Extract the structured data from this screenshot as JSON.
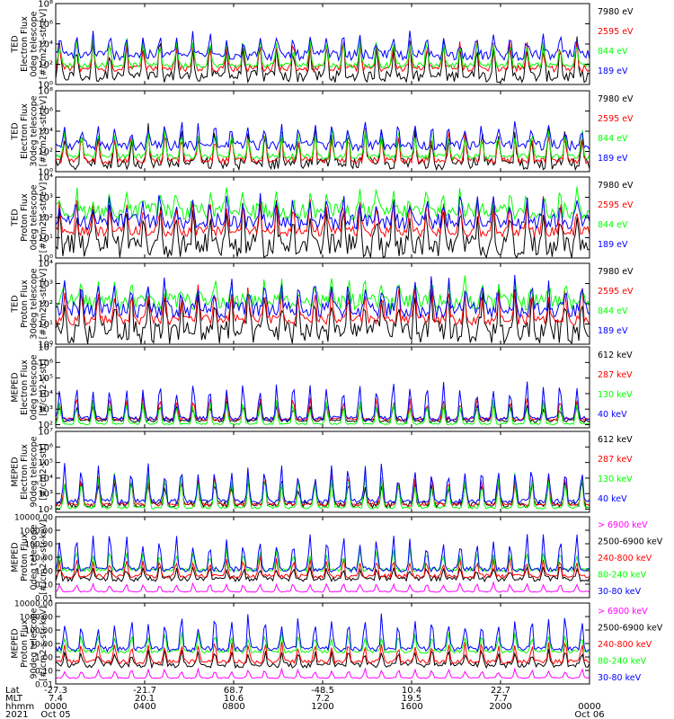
{
  "chart_data": [
    {
      "type": "line",
      "ylabel": [
        "TED",
        "Electron Flux",
        "0deg telescope",
        "[#/cm2-s-str-eV]"
      ],
      "ylog": true,
      "ticks": [
        {
          "v": 0,
          "t": "10⁰"
        },
        {
          "v": 2,
          "t": "10²"
        },
        {
          "v": 4,
          "t": "10⁴"
        },
        {
          "v": 6,
          "t": "10⁶"
        },
        {
          "v": 8,
          "t": "10⁸"
        }
      ],
      "ylim": [
        0,
        8
      ],
      "series": [
        {
          "name": "7980 eV",
          "color": "#000000",
          "base": 0.8,
          "amp": 3.8,
          "noise": 0.6
        },
        {
          "name": "2595 eV",
          "color": "#ff0000",
          "base": 1.6,
          "amp": 3.0,
          "noise": 0.35
        },
        {
          "name": "844 eV",
          "color": "#00ff00",
          "base": 1.9,
          "amp": 2.8,
          "noise": 0.25
        },
        {
          "name": "189 eV",
          "color": "#0000ff",
          "base": 2.9,
          "amp": 2.2,
          "noise": 0.5
        }
      ],
      "shown_legend": [
        "7980 eV",
        "2595 eV",
        "844 eV",
        "189 eV"
      ]
    },
    {
      "type": "line",
      "ylabel": [
        "TED",
        "Electron Flux",
        "30deg telescope",
        "[#/cm2-s-str-eV]"
      ],
      "ylog": true,
      "ticks": [
        {
          "v": 0,
          "t": "10⁰"
        },
        {
          "v": 2,
          "t": "10²"
        },
        {
          "v": 4,
          "t": "10⁴"
        },
        {
          "v": 6,
          "t": "10⁶"
        },
        {
          "v": 8,
          "t": "10⁸"
        }
      ],
      "ylim": [
        0,
        8
      ],
      "series": [
        {
          "name": "7980 eV",
          "color": "#000000",
          "base": 0.8,
          "amp": 3.8,
          "noise": 0.6
        },
        {
          "name": "2595 eV",
          "color": "#ff0000",
          "base": 1.1,
          "amp": 3.2,
          "noise": 0.3
        },
        {
          "name": "844 eV",
          "color": "#00ff00",
          "base": 1.5,
          "amp": 3.0,
          "noise": 0.25
        },
        {
          "name": "189 eV",
          "color": "#0000ff",
          "base": 2.6,
          "amp": 2.4,
          "noise": 0.5
        }
      ],
      "shown_legend": [
        "7980 eV",
        "2595 eV",
        "844 eV",
        "189 eV"
      ]
    },
    {
      "type": "line",
      "ylabel": [
        "TED",
        "Proton Flux",
        "0deg telescope",
        "[#/cm2-s-str-eV]"
      ],
      "ylog": true,
      "ticks": [
        {
          "v": 0,
          "t": "10⁰"
        },
        {
          "v": 1,
          "t": "10¹"
        },
        {
          "v": 2,
          "t": "10²"
        },
        {
          "v": 3,
          "t": "10³"
        },
        {
          "v": 4,
          "t": "10⁴"
        }
      ],
      "ylim": [
        0,
        4
      ],
      "series": [
        {
          "name": "7980 eV",
          "color": "#000000",
          "base": 0.6,
          "amp": 2.2,
          "noise": 0.6
        },
        {
          "name": "2595 eV",
          "color": "#ff0000",
          "base": 1.3,
          "amp": 1.7,
          "noise": 0.25
        },
        {
          "name": "844 eV",
          "color": "#00ff00",
          "base": 2.3,
          "amp": 1.0,
          "noise": 0.4
        },
        {
          "name": "189 eV",
          "color": "#0000ff",
          "base": 1.8,
          "amp": 1.4,
          "noise": 0.4
        }
      ],
      "shown_legend": [
        "7980 eV",
        "2595 eV",
        "844 eV",
        "189 eV"
      ]
    },
    {
      "type": "line",
      "ylabel": [
        "TED",
        "Proton Flux",
        "30deg telescope",
        "[#/cm2-s-str-eV]"
      ],
      "ylog": true,
      "ticks": [
        {
          "v": 0,
          "t": "10⁰"
        },
        {
          "v": 1,
          "t": "10¹"
        },
        {
          "v": 2,
          "t": "10²"
        },
        {
          "v": 3,
          "t": "10³"
        },
        {
          "v": 4,
          "t": "10⁴"
        }
      ],
      "ylim": [
        0,
        4
      ],
      "series": [
        {
          "name": "7980 eV",
          "color": "#000000",
          "base": 0.6,
          "amp": 2.2,
          "noise": 0.6
        },
        {
          "name": "2595 eV",
          "color": "#ff0000",
          "base": 1.2,
          "amp": 1.8,
          "noise": 0.25
        },
        {
          "name": "844 eV",
          "color": "#00ff00",
          "base": 2.1,
          "amp": 1.1,
          "noise": 0.4
        },
        {
          "name": "189 eV",
          "color": "#0000ff",
          "base": 1.7,
          "amp": 1.5,
          "noise": 0.4
        }
      ],
      "shown_legend": [
        "7980 eV",
        "2595 eV",
        "844 eV",
        "189 eV"
      ]
    },
    {
      "type": "line",
      "ylabel": [
        "MEPED",
        "Electron Flux",
        "0deg telescope",
        "[#/cm2-s-str]"
      ],
      "ylog": true,
      "ticks": [
        {
          "v": 2,
          "t": "10²"
        },
        {
          "v": 3,
          "t": "10³"
        },
        {
          "v": 4,
          "t": "10⁴"
        },
        {
          "v": 5,
          "t": "10⁵"
        },
        {
          "v": 6,
          "t": "10⁶"
        },
        {
          "v": 7,
          "t": "10⁷"
        }
      ],
      "ylim": [
        1.8,
        7
      ],
      "series": [
        {
          "name": "612 keV",
          "color": "#000000",
          "base": 2.25,
          "amp": 1.3,
          "noise": 0.1
        },
        {
          "name": "287 keV",
          "color": "#ff0000",
          "base": 2.35,
          "amp": 1.6,
          "noise": 0.08
        },
        {
          "name": "130 keV",
          "color": "#00ff00",
          "base": 2.05,
          "amp": 1.6,
          "noise": 0.05
        },
        {
          "name": "40 keV",
          "color": "#0000ff",
          "base": 2.4,
          "amp": 2.6,
          "noise": 0.15
        }
      ],
      "shown_legend": [
        "612 keV",
        "287 keV",
        "130 keV",
        "40 keV"
      ]
    },
    {
      "type": "line",
      "ylabel": [
        "MEPED",
        "Electron Flux",
        "90deg telescope",
        "[#/cm2-s-str]"
      ],
      "ylog": true,
      "ticks": [
        {
          "v": 2,
          "t": "10²"
        },
        {
          "v": 3,
          "t": "10³"
        },
        {
          "v": 4,
          "t": "10⁴"
        },
        {
          "v": 5,
          "t": "10⁵"
        },
        {
          "v": 6,
          "t": "10⁶"
        },
        {
          "v": 7,
          "t": "10⁷"
        }
      ],
      "ylim": [
        1.8,
        7
      ],
      "series": [
        {
          "name": "612 keV",
          "color": "#000000",
          "base": 2.3,
          "amp": 1.8,
          "noise": 0.2
        },
        {
          "name": "287 keV",
          "color": "#ff0000",
          "base": 2.3,
          "amp": 2.1,
          "noise": 0.1
        },
        {
          "name": "130 keV",
          "color": "#00ff00",
          "base": 2.1,
          "amp": 2.3,
          "noise": 0.08
        },
        {
          "name": "40 keV",
          "color": "#0000ff",
          "base": 2.5,
          "amp": 2.6,
          "noise": 0.15
        }
      ],
      "shown_legend": [
        "612 keV",
        "287 keV",
        "130 keV",
        "40 keV"
      ]
    },
    {
      "type": "line",
      "ylabel": [
        "MEPED",
        "Proton Flux",
        "0deg telescope",
        "[#/cm2-s-str-keV]"
      ],
      "ylog": true,
      "ticks": [
        {
          "v": -2,
          "t": "0.01"
        },
        {
          "v": -1,
          "t": "0.10"
        },
        {
          "v": 0,
          "t": "1.00"
        },
        {
          "v": 1,
          "t": "10.00"
        },
        {
          "v": 2,
          "t": "100.00"
        },
        {
          "v": 3,
          "t": "1000.00"
        },
        {
          "v": 4,
          "t": "10000.00"
        }
      ],
      "ylim": [
        -2,
        4
      ],
      "series": [
        {
          "name": "> 6900 keV",
          "color": "#ff00ff",
          "base": -1.55,
          "amp": 0.7,
          "noise": 0.04
        },
        {
          "name": "2500-6900 keV",
          "color": "#000000",
          "base": -0.6,
          "amp": 1.0,
          "noise": 0.2
        },
        {
          "name": "240-800 keV",
          "color": "#ff0000",
          "base": -0.4,
          "amp": 1.5,
          "noise": 0.15
        },
        {
          "name": "80-240 keV",
          "color": "#00ff00",
          "base": 0.05,
          "amp": 1.7,
          "noise": 0.12
        },
        {
          "name": "30-80 keV",
          "color": "#0000ff",
          "base": 0.1,
          "amp": 2.8,
          "noise": 0.2
        }
      ],
      "shown_legend": [
        "> 6900 keV",
        "2500-6900 keV",
        "240-800 keV",
        "80-240 keV",
        "30-80 keV"
      ]
    },
    {
      "type": "line",
      "ylabel": [
        "MEPED",
        "Proton Flux",
        "90deg telescope",
        "[#/cm2-s-str-keV]"
      ],
      "ylog": true,
      "ticks": [
        {
          "v": -2,
          "t": "0.01"
        },
        {
          "v": -1,
          "t": "0.10"
        },
        {
          "v": 0,
          "t": "1.00"
        },
        {
          "v": 1,
          "t": "10.00"
        },
        {
          "v": 2,
          "t": "100.00"
        },
        {
          "v": 3,
          "t": "1000.00"
        },
        {
          "v": 4,
          "t": "10000.00"
        }
      ],
      "ylim": [
        -2,
        4
      ],
      "series": [
        {
          "name": "> 6900 keV",
          "color": "#ff00ff",
          "base": -1.55,
          "amp": 0.7,
          "noise": 0.04
        },
        {
          "name": "2500-6900 keV",
          "color": "#000000",
          "base": -0.6,
          "amp": 1.2,
          "noise": 0.2
        },
        {
          "name": "240-800 keV",
          "color": "#ff0000",
          "base": -0.35,
          "amp": 1.6,
          "noise": 0.15
        },
        {
          "name": "80-240 keV",
          "color": "#00ff00",
          "base": 0.4,
          "amp": 1.6,
          "noise": 0.12
        },
        {
          "name": "30-80 keV",
          "color": "#0000ff",
          "base": 0.6,
          "amp": 2.6,
          "noise": 0.2
        }
      ],
      "shown_legend": [
        "> 6900 keV",
        "2500-6900 keV",
        "240-800 keV",
        "80-240 keV",
        "30-80 keV"
      ]
    }
  ],
  "time_axis": {
    "row_labels": [
      "Lat",
      "MLT",
      "hhmm",
      "2021"
    ],
    "columns": [
      {
        "lat": "-27.3",
        "mlt": "7.4",
        "hhmm": "0000",
        "date": "Oct 05"
      },
      {
        "lat": "-21.7",
        "mlt": "20.1",
        "hhmm": "0400",
        "date": ""
      },
      {
        "lat": "68.7",
        "mlt": "10.6",
        "hhmm": "0800",
        "date": ""
      },
      {
        "lat": "-48.5",
        "mlt": "7.2",
        "hhmm": "1200",
        "date": ""
      },
      {
        "lat": "10.4",
        "mlt": "19.5",
        "hhmm": "1600",
        "date": ""
      },
      {
        "lat": "22.7",
        "mlt": "7.7",
        "hhmm": "2000",
        "date": ""
      },
      {
        "lat": "",
        "mlt": "",
        "hhmm": "0000",
        "date": "Oct 06"
      }
    ]
  }
}
